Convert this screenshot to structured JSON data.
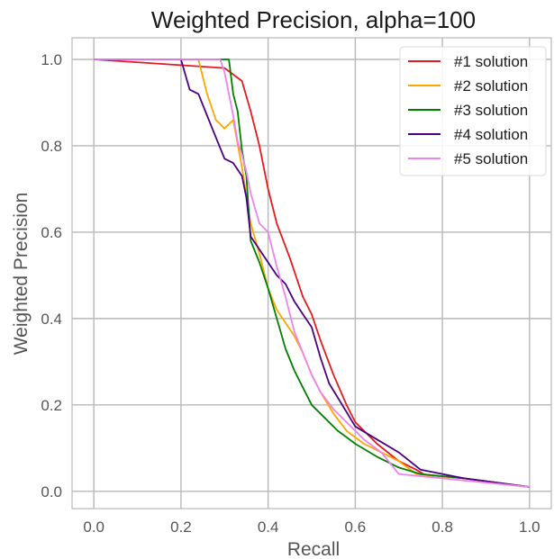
{
  "chart_data": {
    "type": "line",
    "title": "Weighted Precision, alpha=100",
    "xlabel": "Recall",
    "ylabel": "Weighted Precision",
    "xlim": [
      -0.05,
      1.05
    ],
    "ylim": [
      -0.04,
      1.05
    ],
    "xticks": [
      "0.0",
      "0.2",
      "0.4",
      "0.6",
      "0.8",
      "1.0"
    ],
    "yticks": [
      "0.0",
      "0.2",
      "0.4",
      "0.6",
      "0.8",
      "1.0"
    ],
    "grid": true,
    "legend_position": "top-right",
    "series": [
      {
        "name": "#1 solution",
        "color": "#e41a1c",
        "points": [
          [
            0.0,
            1.0
          ],
          [
            0.3,
            0.98
          ],
          [
            0.34,
            0.95
          ],
          [
            0.36,
            0.88
          ],
          [
            0.38,
            0.8
          ],
          [
            0.4,
            0.7
          ],
          [
            0.42,
            0.62
          ],
          [
            0.45,
            0.54
          ],
          [
            0.48,
            0.45
          ],
          [
            0.5,
            0.41
          ],
          [
            0.52,
            0.35
          ],
          [
            0.55,
            0.27
          ],
          [
            0.58,
            0.2
          ],
          [
            0.6,
            0.16
          ],
          [
            0.65,
            0.11
          ],
          [
            0.7,
            0.07
          ],
          [
            0.74,
            0.05
          ],
          [
            0.76,
            0.038
          ],
          [
            0.85,
            0.03
          ],
          [
            1.0,
            0.01
          ]
        ]
      },
      {
        "name": "#2 solution",
        "color": "#ffa500",
        "points": [
          [
            0.0,
            1.0
          ],
          [
            0.24,
            1.0
          ],
          [
            0.26,
            0.92
          ],
          [
            0.28,
            0.86
          ],
          [
            0.3,
            0.84
          ],
          [
            0.32,
            0.86
          ],
          [
            0.34,
            0.75
          ],
          [
            0.36,
            0.62
          ],
          [
            0.38,
            0.55
          ],
          [
            0.4,
            0.47
          ],
          [
            0.42,
            0.42
          ],
          [
            0.44,
            0.39
          ],
          [
            0.46,
            0.36
          ],
          [
            0.48,
            0.32
          ],
          [
            0.5,
            0.27
          ],
          [
            0.52,
            0.23
          ],
          [
            0.55,
            0.18
          ],
          [
            0.58,
            0.14
          ],
          [
            0.62,
            0.11
          ],
          [
            0.66,
            0.09
          ],
          [
            0.7,
            0.07
          ],
          [
            0.74,
            0.04
          ],
          [
            0.85,
            0.03
          ],
          [
            1.0,
            0.01
          ]
        ]
      },
      {
        "name": "#3 solution",
        "color": "#008000",
        "points": [
          [
            0.0,
            1.0
          ],
          [
            0.08,
            1.0
          ],
          [
            0.31,
            1.0
          ],
          [
            0.32,
            0.92
          ],
          [
            0.33,
            0.88
          ],
          [
            0.34,
            0.79
          ],
          [
            0.35,
            0.73
          ],
          [
            0.36,
            0.58
          ],
          [
            0.38,
            0.53
          ],
          [
            0.4,
            0.47
          ],
          [
            0.42,
            0.4
          ],
          [
            0.44,
            0.33
          ],
          [
            0.46,
            0.28
          ],
          [
            0.48,
            0.24
          ],
          [
            0.5,
            0.2
          ],
          [
            0.53,
            0.17
          ],
          [
            0.56,
            0.14
          ],
          [
            0.6,
            0.11
          ],
          [
            0.65,
            0.08
          ],
          [
            0.7,
            0.055
          ],
          [
            0.75,
            0.04
          ],
          [
            0.85,
            0.03
          ],
          [
            1.0,
            0.01
          ]
        ]
      },
      {
        "name": "#4 solution",
        "color": "#4b0082",
        "points": [
          [
            0.0,
            1.0
          ],
          [
            0.2,
            1.0
          ],
          [
            0.22,
            0.93
          ],
          [
            0.24,
            0.92
          ],
          [
            0.26,
            0.87
          ],
          [
            0.28,
            0.82
          ],
          [
            0.3,
            0.77
          ],
          [
            0.32,
            0.76
          ],
          [
            0.34,
            0.73
          ],
          [
            0.35,
            0.68
          ],
          [
            0.36,
            0.59
          ],
          [
            0.38,
            0.56
          ],
          [
            0.4,
            0.53
          ],
          [
            0.42,
            0.5
          ],
          [
            0.44,
            0.48
          ],
          [
            0.46,
            0.44
          ],
          [
            0.48,
            0.41
          ],
          [
            0.5,
            0.38
          ],
          [
            0.52,
            0.31
          ],
          [
            0.54,
            0.25
          ],
          [
            0.57,
            0.2
          ],
          [
            0.6,
            0.15
          ],
          [
            0.65,
            0.12
          ],
          [
            0.7,
            0.09
          ],
          [
            0.75,
            0.05
          ],
          [
            0.85,
            0.03
          ],
          [
            1.0,
            0.01
          ]
        ]
      },
      {
        "name": "#5 solution",
        "color": "#ee82ee",
        "points": [
          [
            0.0,
            1.0
          ],
          [
            0.29,
            1.0
          ],
          [
            0.3,
            0.97
          ],
          [
            0.32,
            0.87
          ],
          [
            0.33,
            0.81
          ],
          [
            0.34,
            0.78
          ],
          [
            0.35,
            0.74
          ],
          [
            0.36,
            0.69
          ],
          [
            0.38,
            0.62
          ],
          [
            0.4,
            0.6
          ],
          [
            0.42,
            0.52
          ],
          [
            0.44,
            0.45
          ],
          [
            0.46,
            0.37
          ],
          [
            0.48,
            0.32
          ],
          [
            0.5,
            0.27
          ],
          [
            0.52,
            0.23
          ],
          [
            0.55,
            0.19
          ],
          [
            0.58,
            0.16
          ],
          [
            0.62,
            0.12
          ],
          [
            0.66,
            0.09
          ],
          [
            0.7,
            0.04
          ],
          [
            0.8,
            0.03
          ],
          [
            1.0,
            0.01
          ]
        ]
      }
    ]
  }
}
